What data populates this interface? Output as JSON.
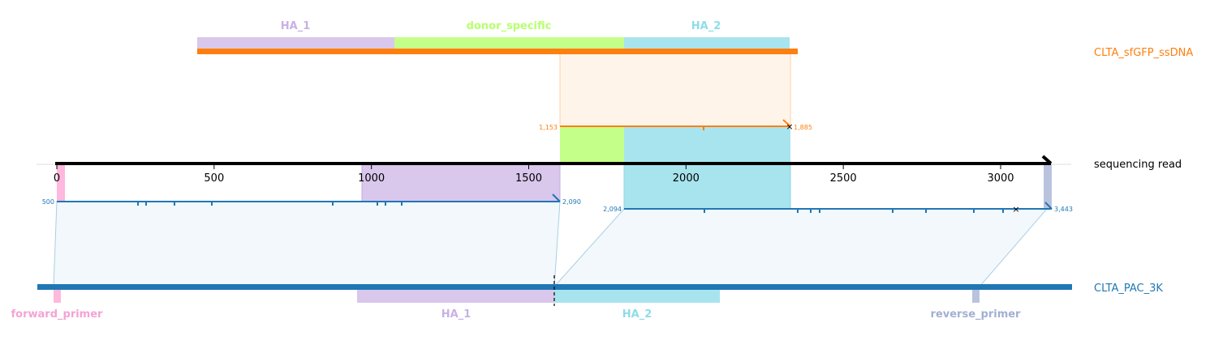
{
  "colors": {
    "ssdna": "#ff7f0e",
    "pac": "#1f77b4",
    "read": "#000000",
    "ha1": "#d9c7ec",
    "ha2": "#a8e4ee",
    "donor": "#c4ff8a",
    "forward_primer": "#ffb8de",
    "reverse_primer": "#b9c3de",
    "ha1_label": "#c9b0e6",
    "ha2_label": "#8fdcea",
    "donor_label": "#b8ff6e",
    "forward_label": "#f5a3d3",
    "reverse_label": "#a3afd3"
  },
  "references": {
    "top": {
      "name": "CLTA_sfGFP_ssDNA"
    },
    "bottom": {
      "name": "CLTA_PAC_3K"
    },
    "read": {
      "name": "sequencing read"
    }
  },
  "features": {
    "ha1_top": "HA_1",
    "donor_specific": "donor_specific",
    "ha2_top": "HA_2",
    "forward_primer": "forward_primer",
    "ha1_bottom": "HA_1",
    "ha2_bottom": "HA_2",
    "reverse_primer": "reverse_primer"
  },
  "axis": {
    "ticks": [
      {
        "value": 0,
        "label": "0"
      },
      {
        "value": 500,
        "label": "500"
      },
      {
        "value": 1000,
        "label": "1000"
      },
      {
        "value": 1500,
        "label": "1500"
      },
      {
        "value": 2000,
        "label": "2000"
      },
      {
        "value": 2500,
        "label": "2500"
      },
      {
        "value": 3000,
        "label": "3000"
      }
    ]
  },
  "alignments": {
    "top": {
      "start_label": "1,153",
      "end_label": "1,885"
    },
    "left": {
      "start_label": "500",
      "end_label": "2,090"
    },
    "right": {
      "start_label": "2,094",
      "end_label": "3,443"
    }
  }
}
